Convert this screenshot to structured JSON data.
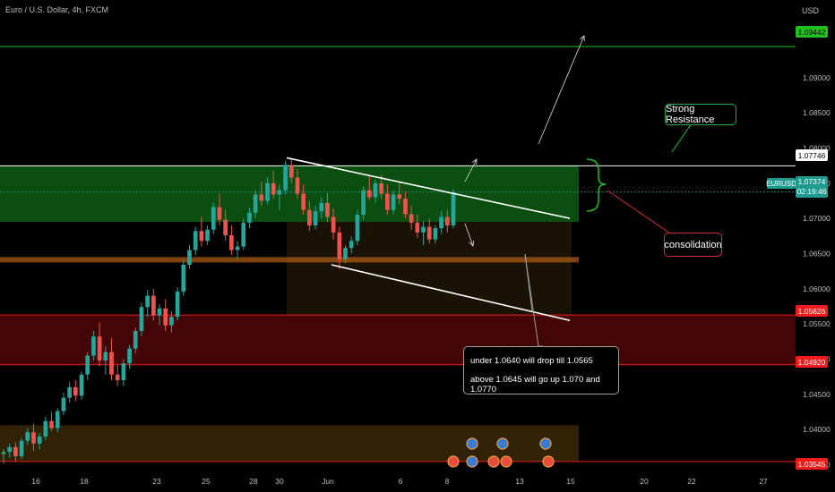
{
  "header": {
    "title": "Euro / U.S. Dollar, 4h, FXCM",
    "currency": "USD"
  },
  "chart_data": {
    "type": "candlestick",
    "symbol": "EURUSD",
    "timeframe": "4h",
    "ylim": [
      1.0334,
      1.099
    ],
    "price_ticks": [
      "1.09000",
      "1.08500",
      "1.08000",
      "1.07500",
      "1.07000",
      "1.06500",
      "1.06000",
      "1.05500",
      "1.05000",
      "1.04500",
      "1.04000",
      "1.03500"
    ],
    "x_ticks": [
      "16",
      "18",
      "23",
      "25",
      "28",
      "30",
      "Jun",
      "6",
      "8",
      "13",
      "15",
      "20",
      "22",
      "27"
    ],
    "levels": [
      {
        "name": "top-resistance",
        "price": "1.09442",
        "color": "#1fc21f"
      },
      {
        "name": "strong-resistance",
        "price": "1.07746",
        "color": "#ffffff"
      },
      {
        "name": "resistance-red-upper",
        "price": "1.05626",
        "color": "#f21b1b"
      },
      {
        "name": "resistance-red-lower",
        "price": "1.04920",
        "color": "#f21b1b"
      },
      {
        "name": "bottom-support",
        "price": "1.03545",
        "color": "#f21b1b"
      }
    ],
    "current": {
      "symbol": "EURUSD",
      "price": "1.07374",
      "countdown": "02:19:46"
    },
    "annotations": {
      "strong_resistance": "Strong Resistance",
      "consolidation": "consolidation",
      "note_line1": "under 1.0640 will drop till 1.0565",
      "note_line2": "above 1.0645 will go up 1.070 and 1.0770"
    },
    "candles": [
      [
        1.0365,
        1.0372,
        1.0352,
        1.0368
      ],
      [
        1.0368,
        1.038,
        1.036,
        1.0375
      ],
      [
        1.0375,
        1.0382,
        1.0355,
        1.0362
      ],
      [
        1.0362,
        1.0388,
        1.0358,
        1.0384
      ],
      [
        1.0384,
        1.0402,
        1.0378,
        1.0396
      ],
      [
        1.0396,
        1.0408,
        1.037,
        1.038
      ],
      [
        1.038,
        1.0395,
        1.0372,
        1.039
      ],
      [
        1.039,
        1.0418,
        1.0385,
        1.0412
      ],
      [
        1.0412,
        1.0425,
        1.0398,
        1.0402
      ],
      [
        1.0402,
        1.043,
        1.0396,
        1.0426
      ],
      [
        1.0426,
        1.0452,
        1.042,
        1.0445
      ],
      [
        1.0445,
        1.0468,
        1.0438,
        1.046
      ],
      [
        1.046,
        1.047,
        1.044,
        1.0448
      ],
      [
        1.0448,
        1.0482,
        1.0442,
        1.0478
      ],
      [
        1.0478,
        1.051,
        1.047,
        1.0505
      ],
      [
        1.0505,
        1.054,
        1.0498,
        1.0532
      ],
      [
        1.0532,
        1.0552,
        1.049,
        1.0498
      ],
      [
        1.0498,
        1.0518,
        1.0478,
        1.051
      ],
      [
        1.051,
        1.053,
        1.047,
        1.0478
      ],
      [
        1.0478,
        1.0492,
        1.0462,
        1.047
      ],
      [
        1.047,
        1.05,
        1.0462,
        1.0494
      ],
      [
        1.0494,
        1.052,
        1.0486,
        1.0515
      ],
      [
        1.0515,
        1.0545,
        1.0508,
        1.054
      ],
      [
        1.054,
        1.058,
        1.0532,
        1.0574
      ],
      [
        1.0574,
        1.0598,
        1.056,
        1.059
      ],
      [
        1.059,
        1.06,
        1.0555,
        1.0562
      ],
      [
        1.0562,
        1.0578,
        1.0548,
        1.0572
      ],
      [
        1.0572,
        1.0585,
        1.054,
        1.0548
      ],
      [
        1.0548,
        1.0568,
        1.0538,
        1.056
      ],
      [
        1.056,
        1.0602,
        1.0555,
        1.0596
      ],
      [
        1.0596,
        1.064,
        1.059,
        1.0634
      ],
      [
        1.0634,
        1.0662,
        1.0628,
        1.0655
      ],
      [
        1.0655,
        1.0688,
        1.0648,
        1.0682
      ],
      [
        1.0682,
        1.0702,
        1.066,
        1.0668
      ],
      [
        1.0668,
        1.069,
        1.0662,
        1.0684
      ],
      [
        1.0684,
        1.0722,
        1.0678,
        1.0716
      ],
      [
        1.0716,
        1.0735,
        1.069,
        1.0698
      ],
      [
        1.0698,
        1.0712,
        1.0668,
        1.0676
      ],
      [
        1.0676,
        1.069,
        1.0648,
        1.0655
      ],
      [
        1.0655,
        1.0668,
        1.0642,
        1.066
      ],
      [
        1.066,
        1.07,
        1.0655,
        1.0694
      ],
      [
        1.0694,
        1.0715,
        1.0686,
        1.0708
      ],
      [
        1.0708,
        1.074,
        1.07,
        1.0734
      ],
      [
        1.0734,
        1.0752,
        1.0718,
        1.0725
      ],
      [
        1.0725,
        1.0758,
        1.072,
        1.075
      ],
      [
        1.075,
        1.0768,
        1.0728,
        1.0734
      ],
      [
        1.0734,
        1.0748,
        1.0712,
        1.074
      ],
      [
        1.074,
        1.0782,
        1.0734,
        1.0776
      ],
      [
        1.0776,
        1.0786,
        1.075,
        1.0758
      ],
      [
        1.0758,
        1.077,
        1.0728,
        1.0735
      ],
      [
        1.0735,
        1.0748,
        1.0705,
        1.0712
      ],
      [
        1.0712,
        1.0724,
        1.0682,
        1.069
      ],
      [
        1.069,
        1.0718,
        1.0684,
        1.071
      ],
      [
        1.071,
        1.073,
        1.07,
        1.0722
      ],
      [
        1.0722,
        1.0736,
        1.0695,
        1.0702
      ],
      [
        1.0702,
        1.0714,
        1.067,
        1.068
      ],
      [
        1.068,
        1.0688,
        1.0628,
        1.0642
      ],
      [
        1.0642,
        1.0662,
        1.0636,
        1.0658
      ],
      [
        1.0658,
        1.0674,
        1.065,
        1.0668
      ],
      [
        1.0668,
        1.0712,
        1.0662,
        1.0705
      ],
      [
        1.0705,
        1.0745,
        1.0698,
        1.074
      ],
      [
        1.074,
        1.0762,
        1.0726,
        1.073
      ],
      [
        1.073,
        1.0755,
        1.0722,
        1.075
      ],
      [
        1.075,
        1.0762,
        1.0728,
        1.0735
      ],
      [
        1.0735,
        1.0748,
        1.0705,
        1.0712
      ],
      [
        1.0712,
        1.074,
        1.0706,
        1.0734
      ],
      [
        1.0734,
        1.0752,
        1.072,
        1.0728
      ],
      [
        1.0728,
        1.0738,
        1.07,
        1.0706
      ],
      [
        1.0706,
        1.0718,
        1.0684,
        1.0694
      ],
      [
        1.0694,
        1.0706,
        1.0672,
        1.068
      ],
      [
        1.068,
        1.0696,
        1.0662,
        1.0688
      ],
      [
        1.0688,
        1.07,
        1.0664,
        1.067
      ],
      [
        1.067,
        1.069,
        1.0664,
        1.0686
      ],
      [
        1.0686,
        1.071,
        1.0678,
        1.0702
      ],
      [
        1.0702,
        1.0712,
        1.068,
        1.069
      ],
      [
        1.069,
        1.0742,
        1.0686,
        1.0737
      ]
    ]
  }
}
